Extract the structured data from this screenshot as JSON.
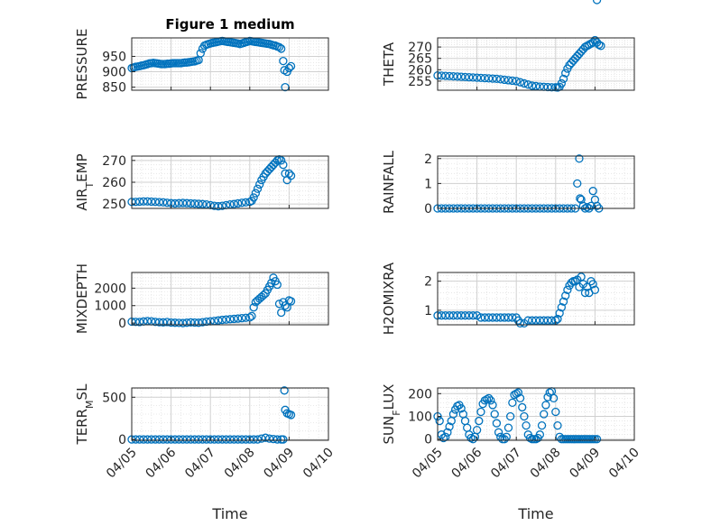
{
  "figure": {
    "title": "Figure 1 medium",
    "marker_color": "#0072BD"
  },
  "chart_data": [
    {
      "type": "scatter",
      "ylabel": "PRESSURE",
      "xlabel": "",
      "title": "Figure 1 medium",
      "xlim": [
        0,
        5
      ],
      "ylim": [
        840,
        1010
      ],
      "yticks": [
        850,
        900,
        950
      ],
      "yticklabels": [
        "850",
        "900",
        "950"
      ],
      "xticklabels": [],
      "grid": true,
      "points_x": [
        0.0,
        0.05,
        0.1,
        0.15,
        0.2,
        0.25,
        0.3,
        0.35,
        0.4,
        0.45,
        0.5,
        0.55,
        0.6,
        0.65,
        0.7,
        0.75,
        0.8,
        0.85,
        0.9,
        0.95,
        1.0,
        1.05,
        1.1,
        1.15,
        1.2,
        1.25,
        1.3,
        1.35,
        1.4,
        1.45,
        1.5,
        1.55,
        1.6,
        1.65,
        1.7,
        1.75,
        1.8,
        1.85,
        1.9,
        1.95,
        2.0,
        2.05,
        2.1,
        2.15,
        2.2,
        2.25,
        2.3,
        2.35,
        2.4,
        2.45,
        2.5,
        2.55,
        2.6,
        2.65,
        2.7,
        2.75,
        2.8,
        2.85,
        2.9,
        2.95,
        3.0,
        3.05,
        3.1,
        3.15,
        3.2,
        3.25,
        3.3,
        3.35,
        3.4,
        3.45,
        3.5,
        3.55,
        3.6,
        3.65,
        3.7,
        3.75,
        3.8,
        3.85,
        3.88,
        3.9,
        3.95,
        4.0,
        4.05
      ],
      "points_y": [
        912,
        914,
        916,
        917,
        918,
        920,
        921,
        923,
        925,
        927,
        928,
        929,
        928,
        927,
        926,
        925,
        925,
        925,
        926,
        926,
        927,
        928,
        928,
        928,
        928,
        928,
        929,
        930,
        930,
        931,
        932,
        933,
        934,
        936,
        938,
        960,
        975,
        985,
        988,
        990,
        992,
        994,
        995,
        996,
        998,
        999,
        1000,
        999,
        998,
        997,
        996,
        995,
        994,
        993,
        992,
        990,
        992,
        994,
        996,
        998,
        1000,
        999,
        998,
        997,
        996,
        995,
        994,
        993,
        992,
        991,
        990,
        988,
        986,
        985,
        982,
        980,
        975,
        935,
        905,
        850,
        900,
        912,
        918
      ]
    },
    {
      "type": "scatter",
      "ylabel": "THETA",
      "xlabel": "",
      "xlim": [
        0,
        5
      ],
      "ylim": [
        251,
        274
      ],
      "yticks": [
        255,
        260,
        265,
        270
      ],
      "yticklabels": [
        "255",
        "260",
        "265",
        "270"
      ],
      "xticklabels": [],
      "grid": true,
      "points_x": [
        0.0,
        0.1,
        0.2,
        0.3,
        0.4,
        0.5,
        0.6,
        0.7,
        0.8,
        0.9,
        1.0,
        1.1,
        1.2,
        1.3,
        1.4,
        1.5,
        1.6,
        1.7,
        1.8,
        1.9,
        2.0,
        2.1,
        2.2,
        2.3,
        2.4,
        2.5,
        2.6,
        2.7,
        2.8,
        2.9,
        3.0,
        3.05,
        3.1,
        3.15,
        3.2,
        3.25,
        3.3,
        3.35,
        3.4,
        3.45,
        3.5,
        3.55,
        3.6,
        3.65,
        3.7,
        3.75,
        3.8,
        3.85,
        3.9,
        3.95,
        4.0,
        4.05,
        4.1,
        4.15
      ],
      "points_y": [
        257.5,
        257.4,
        257.3,
        257.2,
        257.1,
        257.0,
        256.9,
        256.8,
        256.7,
        256.6,
        256.5,
        256.4,
        256.3,
        256.2,
        256.1,
        256.0,
        255.8,
        255.6,
        255.4,
        255.2,
        255.0,
        254.5,
        254.0,
        253.5,
        253.0,
        252.8,
        252.6,
        252.5,
        252.4,
        252.3,
        252.3,
        252.2,
        252.5,
        254.0,
        256.0,
        258.5,
        260.5,
        262.0,
        263.0,
        264.0,
        265.0,
        266.0,
        267.0,
        268.0,
        269.0,
        270.0,
        270.5,
        271.0,
        271.5,
        272.0,
        273.0,
        272.0,
        271.0,
        270.5
      ]
    },
    {
      "type": "scatter",
      "ylabel": "AIR_TEMP",
      "xlabel": "",
      "xlim": [
        0,
        5
      ],
      "ylim": [
        248,
        272
      ],
      "yticks": [
        250,
        260,
        270
      ],
      "yticklabels": [
        "250",
        "260",
        "270"
      ],
      "xticklabels": [],
      "grid": true,
      "points_x": [
        0.0,
        0.1,
        0.2,
        0.3,
        0.4,
        0.5,
        0.6,
        0.7,
        0.8,
        0.9,
        1.0,
        1.1,
        1.2,
        1.3,
        1.4,
        1.5,
        1.6,
        1.7,
        1.8,
        1.9,
        2.0,
        2.1,
        2.2,
        2.3,
        2.4,
        2.5,
        2.6,
        2.7,
        2.8,
        2.9,
        3.0,
        3.05,
        3.1,
        3.15,
        3.2,
        3.25,
        3.3,
        3.35,
        3.4,
        3.45,
        3.5,
        3.55,
        3.6,
        3.65,
        3.7,
        3.75,
        3.8,
        3.85,
        3.9,
        3.95,
        4.0,
        4.05
      ],
      "points_y": [
        251.0,
        251.0,
        251.1,
        251.2,
        251.2,
        251.1,
        251.0,
        250.9,
        250.8,
        250.6,
        250.4,
        250.3,
        250.4,
        250.5,
        250.4,
        250.3,
        250.2,
        250.1,
        250.0,
        249.8,
        249.5,
        249.2,
        249.0,
        249.2,
        249.5,
        249.8,
        250.0,
        250.3,
        250.6,
        250.8,
        251.0,
        251.5,
        253.0,
        255.0,
        257.0,
        259.0,
        261.0,
        262.5,
        264.0,
        265.0,
        266.0,
        267.0,
        268.0,
        269.0,
        270.0,
        270.5,
        270.0,
        268.0,
        264.0,
        261.0,
        264.0,
        263.0
      ]
    },
    {
      "type": "scatter",
      "ylabel": "RAINFALL",
      "xlabel": "",
      "xlim": [
        0,
        5
      ],
      "ylim": [
        0,
        2.1
      ],
      "yticks": [
        0,
        1,
        2
      ],
      "yticklabels": [
        "0",
        "1",
        "2"
      ],
      "xticklabels": [],
      "grid": true,
      "points_x": [
        0.0,
        0.1,
        0.2,
        0.3,
        0.4,
        0.5,
        0.6,
        0.7,
        0.8,
        0.9,
        1.0,
        1.1,
        1.2,
        1.3,
        1.4,
        1.5,
        1.6,
        1.7,
        1.8,
        1.9,
        2.0,
        2.1,
        2.2,
        2.3,
        2.4,
        2.5,
        2.6,
        2.7,
        2.8,
        2.9,
        3.0,
        3.1,
        3.2,
        3.3,
        3.4,
        3.5,
        3.55,
        3.6,
        3.62,
        3.65,
        3.7,
        3.75,
        3.8,
        3.85,
        3.9,
        3.95,
        4.0,
        4.05,
        4.1
      ],
      "points_y": [
        0,
        0,
        0,
        0,
        0,
        0,
        0,
        0,
        0,
        0,
        0,
        0,
        0,
        0,
        0,
        0,
        0,
        0,
        0,
        0,
        0,
        0,
        0,
        0,
        0,
        0,
        0,
        0,
        0,
        0,
        0,
        0,
        0,
        0,
        0,
        0,
        1.0,
        2.0,
        0.4,
        0.35,
        0.1,
        0.0,
        0.05,
        0.0,
        0.1,
        0.7,
        0.35,
        0.1,
        0.0
      ]
    },
    {
      "type": "scatter",
      "ylabel": "MIXDEPTH",
      "xlabel": "",
      "xlim": [
        0,
        5
      ],
      "ylim": [
        -100,
        2900
      ],
      "yticks": [
        0,
        1000,
        2000
      ],
      "yticklabels": [
        "0",
        "1000",
        "2000"
      ],
      "xticklabels": [],
      "grid": true,
      "points_x": [
        0.0,
        0.1,
        0.2,
        0.3,
        0.4,
        0.5,
        0.6,
        0.7,
        0.8,
        0.9,
        1.0,
        1.1,
        1.2,
        1.3,
        1.4,
        1.5,
        1.6,
        1.7,
        1.8,
        1.9,
        2.0,
        2.1,
        2.2,
        2.3,
        2.4,
        2.5,
        2.6,
        2.7,
        2.8,
        2.9,
        3.0,
        3.05,
        3.1,
        3.15,
        3.2,
        3.25,
        3.3,
        3.35,
        3.4,
        3.45,
        3.5,
        3.55,
        3.6,
        3.65,
        3.7,
        3.75,
        3.8,
        3.85,
        3.9,
        3.95,
        4.0,
        4.05
      ],
      "points_y": [
        80,
        70,
        60,
        90,
        110,
        100,
        70,
        50,
        40,
        60,
        30,
        20,
        10,
        0,
        20,
        40,
        30,
        20,
        50,
        80,
        100,
        120,
        150,
        180,
        200,
        220,
        240,
        260,
        280,
        300,
        320,
        400,
        900,
        1200,
        1300,
        1400,
        1500,
        1600,
        1700,
        1900,
        2100,
        2300,
        2600,
        2400,
        2200,
        1100,
        600,
        1200,
        1000,
        900,
        1300,
        1250
      ]
    },
    {
      "type": "scatter",
      "ylabel": "H2OMIXRA",
      "xlabel": "",
      "xlim": [
        0,
        5
      ],
      "ylim": [
        0.5,
        2.3
      ],
      "yticks": [
        1,
        2
      ],
      "yticklabels": [
        "1",
        "2"
      ],
      "xticklabels": [],
      "grid": true,
      "points_x": [
        0.0,
        0.1,
        0.2,
        0.3,
        0.4,
        0.5,
        0.6,
        0.7,
        0.8,
        0.9,
        1.0,
        1.1,
        1.2,
        1.3,
        1.4,
        1.5,
        1.6,
        1.7,
        1.8,
        1.9,
        2.0,
        2.05,
        2.1,
        2.2,
        2.3,
        2.4,
        2.5,
        2.6,
        2.7,
        2.8,
        2.9,
        3.0,
        3.05,
        3.1,
        3.15,
        3.2,
        3.25,
        3.3,
        3.35,
        3.4,
        3.45,
        3.5,
        3.55,
        3.6,
        3.65,
        3.7,
        3.75,
        3.8,
        3.85,
        3.9,
        3.95,
        4.0,
        4.05
      ],
      "points_y": [
        0.82,
        0.82,
        0.82,
        0.82,
        0.82,
        0.82,
        0.82,
        0.82,
        0.82,
        0.82,
        0.82,
        0.75,
        0.75,
        0.75,
        0.75,
        0.75,
        0.75,
        0.75,
        0.75,
        0.75,
        0.75,
        0.65,
        0.55,
        0.55,
        0.65,
        0.65,
        0.65,
        0.65,
        0.65,
        0.65,
        0.65,
        0.65,
        0.7,
        0.9,
        1.1,
        1.3,
        1.5,
        1.7,
        1.85,
        1.95,
        2.0,
        2.0,
        2.05,
        1.8,
        2.15,
        1.9,
        1.6,
        1.8,
        1.6,
        2.0,
        1.9,
        1.7
      ]
    },
    {
      "type": "scatter",
      "ylabel": "TERR_MSL",
      "xlabel": "Time",
      "xlim": [
        0,
        5
      ],
      "ylim": [
        -10,
        610
      ],
      "yticks": [
        0,
        500
      ],
      "yticklabels": [
        "0",
        "500"
      ],
      "xticklabels": [
        "04/05",
        "04/06",
        "04/07",
        "04/08",
        "04/09",
        "04/10"
      ],
      "grid": true,
      "points_x": [
        0.0,
        0.1,
        0.2,
        0.3,
        0.4,
        0.5,
        0.6,
        0.7,
        0.8,
        0.9,
        1.0,
        1.1,
        1.2,
        1.3,
        1.4,
        1.5,
        1.6,
        1.7,
        1.8,
        1.9,
        2.0,
        2.1,
        2.2,
        2.3,
        2.4,
        2.5,
        2.6,
        2.7,
        2.8,
        2.9,
        3.0,
        3.1,
        3.2,
        3.3,
        3.4,
        3.5,
        3.6,
        3.7,
        3.8,
        3.85,
        3.88,
        3.9,
        3.95,
        4.0,
        4.05
      ],
      "points_y": [
        0,
        0,
        0,
        0,
        0,
        0,
        0,
        0,
        0,
        0,
        0,
        0,
        0,
        0,
        0,
        0,
        0,
        0,
        0,
        0,
        0,
        0,
        0,
        0,
        0,
        0,
        0,
        0,
        0,
        0,
        0,
        0,
        0,
        10,
        20,
        10,
        5,
        0,
        0,
        0,
        580,
        350,
        310,
        300,
        290
      ]
    },
    {
      "type": "scatter",
      "ylabel": "SUN_FLUX",
      "xlabel": "Time",
      "xlim": [
        0,
        5
      ],
      "ylim": [
        -5,
        225
      ],
      "yticks": [
        0,
        100,
        200
      ],
      "yticklabels": [
        "0",
        "100",
        "200"
      ],
      "xticklabels": [
        "04/05",
        "04/06",
        "04/07",
        "04/08",
        "04/09",
        "04/10"
      ],
      "grid": true,
      "points_x": [
        0.0,
        0.05,
        0.1,
        0.15,
        0.2,
        0.25,
        0.3,
        0.35,
        0.4,
        0.45,
        0.5,
        0.55,
        0.6,
        0.65,
        0.7,
        0.75,
        0.8,
        0.85,
        0.9,
        0.95,
        1.0,
        1.05,
        1.1,
        1.15,
        1.2,
        1.25,
        1.3,
        1.35,
        1.4,
        1.45,
        1.5,
        1.55,
        1.6,
        1.65,
        1.7,
        1.75,
        1.8,
        1.85,
        1.9,
        1.95,
        2.0,
        2.05,
        2.1,
        2.15,
        2.2,
        2.25,
        2.3,
        2.35,
        2.4,
        2.45,
        2.5,
        2.55,
        2.6,
        2.65,
        2.7,
        2.75,
        2.8,
        2.85,
        2.9,
        2.95,
        3.0,
        3.05,
        3.1,
        3.15,
        3.2,
        3.25,
        3.3,
        3.35,
        3.4,
        3.45,
        3.5,
        3.55,
        3.6,
        3.65,
        3.7,
        3.75,
        3.8,
        3.85,
        3.9,
        3.95,
        4.0,
        4.05
      ],
      "points_y": [
        100,
        80,
        20,
        5,
        10,
        30,
        55,
        80,
        110,
        130,
        145,
        150,
        135,
        110,
        80,
        50,
        20,
        5,
        0,
        10,
        40,
        80,
        120,
        155,
        170,
        175,
        180,
        170,
        150,
        110,
        70,
        30,
        10,
        0,
        0,
        10,
        50,
        100,
        160,
        195,
        200,
        205,
        180,
        140,
        100,
        60,
        20,
        5,
        0,
        0,
        0,
        5,
        20,
        60,
        110,
        150,
        185,
        205,
        210,
        180,
        120,
        60,
        10,
        0,
        0,
        0,
        0,
        0,
        0,
        0,
        0,
        0,
        0,
        0,
        0,
        0,
        0,
        0,
        0,
        0,
        0,
        0
      ]
    }
  ]
}
